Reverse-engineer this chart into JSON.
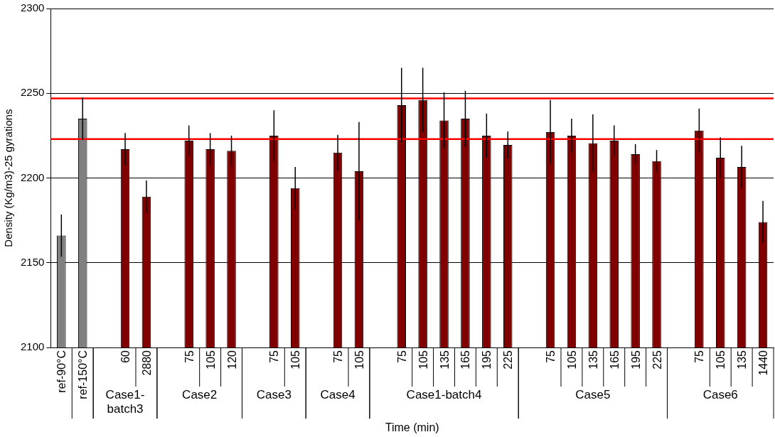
{
  "chart_data": {
    "type": "bar",
    "xlabel": "Time (min)",
    "ylabel": "Density (Kg/m3)-25 gyrations",
    "categories": [
      "ref-90°C",
      "ref-150°C",
      null,
      "60",
      "2880",
      null,
      "75",
      "105",
      "120",
      null,
      "75",
      "105",
      null,
      "75",
      "105",
      null,
      "75",
      "105",
      "135",
      "165",
      "195",
      "225",
      null,
      "75",
      "105",
      "135",
      "165",
      "195",
      "225",
      null,
      "75",
      "105",
      "135",
      "1440"
    ],
    "values": [
      2166,
      2235,
      null,
      2217,
      2189,
      null,
      2222,
      2217,
      2216,
      null,
      2225,
      2194,
      null,
      2215,
      2204,
      null,
      2243,
      2246,
      2234,
      2235,
      2225,
      2219.5,
      null,
      2227,
      2225,
      2220.5,
      2222,
      2214,
      2210,
      null,
      2228,
      2212,
      2206.5,
      2174
    ],
    "errors": [
      12.5,
      12.5,
      null,
      9.5,
      9.5,
      null,
      9,
      9.5,
      9,
      null,
      15,
      12.5,
      null,
      10.5,
      29,
      null,
      22,
      19,
      16.5,
      16.5,
      13,
      8,
      null,
      19,
      10,
      17,
      9,
      6,
      6.5,
      null,
      13,
      12,
      12.5,
      12.5
    ],
    "colors": [
      "#808080",
      "#808080",
      null,
      "#800000",
      "#800000",
      null,
      "#800000",
      "#800000",
      "#800000",
      null,
      "#800000",
      "#800000",
      null,
      "#800000",
      "#800000",
      null,
      "#800000",
      "#800000",
      "#800000",
      "#800000",
      "#800000",
      "#800000",
      null,
      "#800000",
      "#800000",
      "#800000",
      "#800000",
      "#800000",
      "#800000",
      null,
      "#800000",
      "#800000",
      "#800000",
      "#800000"
    ],
    "annotations": [
      "Case1-batch3",
      "Case2",
      "Case3",
      "Case4",
      "Case1-batch4",
      "Case5",
      "Case6"
    ],
    "ref_lines": [
      {
        "axis": "y",
        "value": 2247,
        "color": "#ff0000"
      },
      {
        "axis": "y",
        "value": 2223,
        "color": "#ff0000"
      }
    ],
    "ylim": [
      2100,
      2300
    ],
    "yticks": [
      2100,
      2150,
      2200,
      2250,
      2300
    ],
    "grid": "y",
    "legend": false
  }
}
